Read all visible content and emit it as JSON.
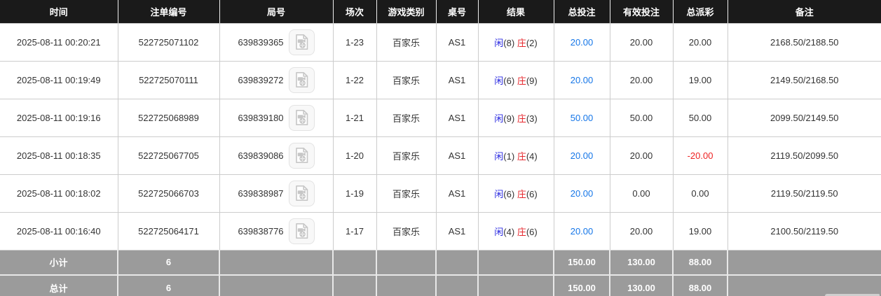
{
  "colors": {
    "header_bg": "#1a1a1a",
    "player_blue": "#2a2ae0",
    "banker_red": "#e6252b",
    "amount_blue": "#1576e8",
    "negative_red": "#ee2222",
    "summary_bg": "#9b9b9b"
  },
  "icons": {
    "video_replay": "video-replay-icon"
  },
  "table": {
    "columns": [
      {
        "key": "time",
        "label": "时间"
      },
      {
        "key": "bet_id",
        "label": "注单编号"
      },
      {
        "key": "round",
        "label": "局号"
      },
      {
        "key": "session",
        "label": "场次"
      },
      {
        "key": "game_type",
        "label": "游戏类别"
      },
      {
        "key": "table_no",
        "label": "桌号"
      },
      {
        "key": "result",
        "label": "结果"
      },
      {
        "key": "total_bet",
        "label": "总投注"
      },
      {
        "key": "valid_bet",
        "label": "有效投注"
      },
      {
        "key": "payout",
        "label": "总派彩"
      },
      {
        "key": "remark",
        "label": "备注"
      }
    ],
    "result_labels": {
      "player": "闲",
      "banker": "庄"
    },
    "rows": [
      {
        "time": "2025-08-11 00:20:21",
        "bet_id": "522725071102",
        "round": "639839365",
        "session": "1-23",
        "game_type": "百家乐",
        "table_no": "AS1",
        "result_player": "(8)",
        "result_banker": "(2)",
        "total_bet": "20.00",
        "valid_bet": "20.00",
        "payout": "20.00",
        "remark": "2168.50/2188.50"
      },
      {
        "time": "2025-08-11 00:19:49",
        "bet_id": "522725070111",
        "round": "639839272",
        "session": "1-22",
        "game_type": "百家乐",
        "table_no": "AS1",
        "result_player": "(6)",
        "result_banker": "(9)",
        "total_bet": "20.00",
        "valid_bet": "20.00",
        "payout": "19.00",
        "remark": "2149.50/2168.50"
      },
      {
        "time": "2025-08-11 00:19:16",
        "bet_id": "522725068989",
        "round": "639839180",
        "session": "1-21",
        "game_type": "百家乐",
        "table_no": "AS1",
        "result_player": "(9)",
        "result_banker": "(3)",
        "total_bet": "50.00",
        "valid_bet": "50.00",
        "payout": "50.00",
        "remark": "2099.50/2149.50"
      },
      {
        "time": "2025-08-11 00:18:35",
        "bet_id": "522725067705",
        "round": "639839086",
        "session": "1-20",
        "game_type": "百家乐",
        "table_no": "AS1",
        "result_player": "(1)",
        "result_banker": "(4)",
        "total_bet": "20.00",
        "valid_bet": "20.00",
        "payout": "-20.00",
        "remark": "2119.50/2099.50"
      },
      {
        "time": "2025-08-11 00:18:02",
        "bet_id": "522725066703",
        "round": "639838987",
        "session": "1-19",
        "game_type": "百家乐",
        "table_no": "AS1",
        "result_player": "(6)",
        "result_banker": "(6)",
        "total_bet": "20.00",
        "valid_bet": "0.00",
        "payout": "0.00",
        "remark": "2119.50/2119.50"
      },
      {
        "time": "2025-08-11 00:16:40",
        "bet_id": "522725064171",
        "round": "639838776",
        "session": "1-17",
        "game_type": "百家乐",
        "table_no": "AS1",
        "result_player": "(4)",
        "result_banker": "(6)",
        "total_bet": "20.00",
        "valid_bet": "20.00",
        "payout": "19.00",
        "remark": "2100.50/2119.50"
      }
    ],
    "summary_rows": [
      {
        "label": "小计",
        "count": "6",
        "total_bet": "150.00",
        "valid_bet": "130.00",
        "payout": "88.00"
      },
      {
        "label": "总计",
        "count": "6",
        "total_bet": "150.00",
        "valid_bet": "130.00",
        "payout": "88.00"
      }
    ]
  }
}
